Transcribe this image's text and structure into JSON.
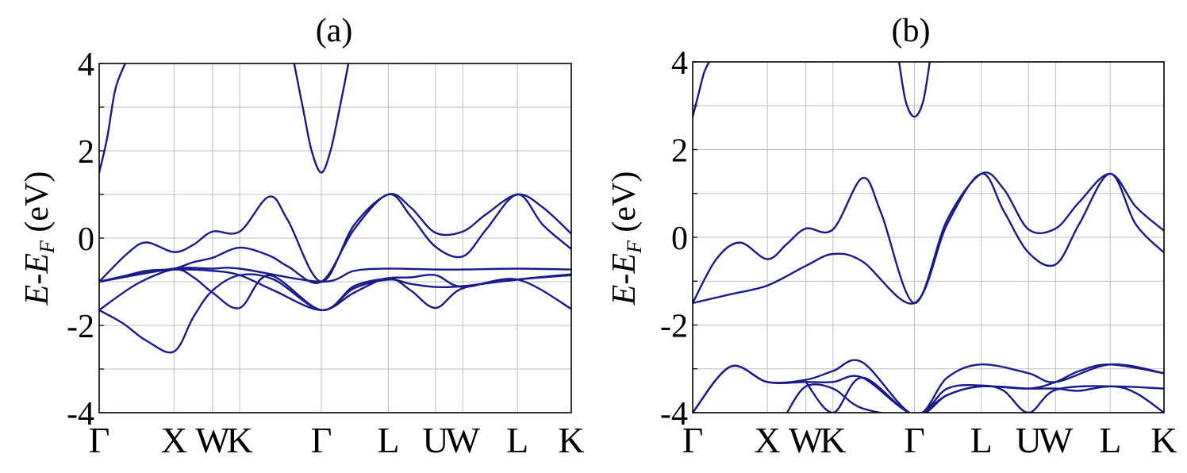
{
  "chart_data": [
    {
      "type": "line",
      "title": "(a)",
      "ylabel_main": "E-E",
      "ylabel_sub": "F",
      "ylabel_unit": " (eV)",
      "ylim": [
        -4,
        4
      ],
      "yticks": [
        -4,
        -2,
        0,
        2,
        4
      ],
      "ytick_labels": [
        "-4",
        "-2",
        "0",
        "2",
        "4"
      ],
      "x_labels": [
        "Γ",
        "X",
        "W",
        "K",
        "Γ",
        "L",
        "U",
        "W",
        "L",
        "K"
      ],
      "x_label_positions": [
        0,
        0.1585,
        0.2402,
        0.2977,
        0.4706,
        0.6124,
        0.7126,
        0.7701,
        0.886,
        1.0
      ],
      "grid": true,
      "color": "#1a1a8c",
      "series": [
        {
          "x": [
            0,
            0.017,
            0.034,
            0.055
          ],
          "y": [
            1.5,
            2.3,
            3.4,
            4.0
          ]
        },
        {
          "x": [
            0.413,
            0.433,
            0.45,
            0.4706,
            0.49,
            0.508,
            0.528
          ],
          "y": [
            4.0,
            2.9,
            2.0,
            1.5,
            2.0,
            2.9,
            4.0
          ]
        },
        {
          "x": [
            0,
            0.06,
            0.1,
            0.1585,
            0.2,
            0.2402,
            0.2977,
            0.36,
            0.4,
            0.4706,
            0.54,
            0.6124,
            0.66,
            0.7126,
            0.7701,
            0.82,
            0.886,
            0.94,
            1.0
          ],
          "y": [
            -1.0,
            -0.35,
            -0.1,
            -0.32,
            -0.15,
            0.15,
            0.15,
            0.95,
            0.4,
            -1.0,
            0.3,
            1.0,
            0.7,
            0.12,
            0.15,
            0.55,
            1.0,
            0.7,
            0.1
          ]
        },
        {
          "x": [
            0,
            0.06,
            0.1,
            0.1585,
            0.2,
            0.2402,
            0.2977,
            0.36,
            0.4,
            0.4706,
            0.54,
            0.6124,
            0.66,
            0.7126,
            0.7701,
            0.82,
            0.886,
            0.94,
            1.0
          ],
          "y": [
            -1.0,
            -0.85,
            -0.75,
            -0.7,
            -0.55,
            -0.45,
            -0.22,
            -0.4,
            -0.65,
            -1.0,
            0.2,
            1.0,
            0.5,
            -0.2,
            -0.42,
            0.2,
            1.0,
            0.3,
            -0.25
          ]
        },
        {
          "x": [
            0,
            0.1585,
            0.2402,
            0.2977,
            0.4706,
            0.54,
            0.6124,
            0.7126,
            0.7701,
            0.886,
            1.0
          ],
          "y": [
            -1.0,
            -0.7,
            -0.7,
            -0.7,
            -1.0,
            -0.75,
            -0.7,
            -0.72,
            -0.72,
            -0.7,
            -0.72
          ]
        },
        {
          "x": [
            0,
            0.08,
            0.1585,
            0.2402,
            0.2977,
            0.37,
            0.4706,
            0.54,
            0.6124,
            0.66,
            0.7126,
            0.7701,
            0.886,
            1.0
          ],
          "y": [
            -1.0,
            -0.82,
            -0.72,
            -0.75,
            -0.85,
            -1.2,
            -1.65,
            -1.25,
            -0.92,
            -1.2,
            -1.6,
            -1.15,
            -0.95,
            -0.83
          ]
        },
        {
          "x": [
            0,
            0.08,
            0.1585,
            0.2,
            0.2402,
            0.2977,
            0.36,
            0.4706,
            0.54,
            0.6124,
            0.66,
            0.7126,
            0.7701,
            0.886,
            1.0
          ],
          "y": [
            -1.65,
            -1.05,
            -0.72,
            -0.9,
            -1.25,
            -1.6,
            -0.85,
            -1.65,
            -1.1,
            -0.92,
            -0.9,
            -0.85,
            -1.12,
            -0.95,
            -1.62
          ]
        },
        {
          "x": [
            0,
            0.05,
            0.1,
            0.1585,
            0.2,
            0.2402,
            0.2977,
            0.37,
            0.4706,
            0.54,
            0.6124,
            0.66,
            0.7126,
            0.7701,
            0.886,
            1.0
          ],
          "y": [
            -1.65,
            -1.95,
            -2.35,
            -2.6,
            -1.8,
            -1.2,
            -0.85,
            -0.95,
            -1.65,
            -1.15,
            -0.95,
            -1.05,
            -1.12,
            -1.1,
            -0.95,
            -0.85
          ]
        }
      ]
    },
    {
      "type": "line",
      "title": "(b)",
      "ylabel_main": "E-E",
      "ylabel_sub": "F",
      "ylabel_unit": " (eV)",
      "ylim": [
        -4,
        4
      ],
      "yticks": [
        -4,
        -2,
        0,
        2,
        4
      ],
      "ytick_labels": [
        "-4",
        "-2",
        "0",
        "2",
        "4"
      ],
      "x_labels": [
        "Γ",
        "X",
        "W",
        "K",
        "Γ",
        "L",
        "U",
        "W",
        "L",
        "K"
      ],
      "x_label_positions": [
        0,
        0.1585,
        0.2402,
        0.2977,
        0.4706,
        0.6124,
        0.7126,
        0.7701,
        0.886,
        1.0
      ],
      "grid": true,
      "color": "#1a1a8c",
      "series": [
        {
          "x": [
            0,
            0.012,
            0.024,
            0.035
          ],
          "y": [
            2.75,
            3.25,
            3.75,
            4.0
          ]
        },
        {
          "x": [
            0.438,
            0.452,
            0.4706,
            0.489,
            0.503
          ],
          "y": [
            4.0,
            3.1,
            2.75,
            3.1,
            4.0
          ]
        },
        {
          "x": [
            0,
            0.05,
            0.1,
            0.1585,
            0.2,
            0.2402,
            0.2977,
            0.36,
            0.4,
            0.4706,
            0.54,
            0.6124,
            0.66,
            0.7126,
            0.7701,
            0.82,
            0.886,
            0.94,
            1.0
          ],
          "y": [
            -1.5,
            -0.5,
            -0.12,
            -0.5,
            -0.15,
            0.2,
            0.18,
            1.35,
            0.55,
            -1.5,
            0.4,
            1.45,
            1.1,
            0.18,
            0.2,
            0.8,
            1.45,
            0.7,
            0.15
          ]
        },
        {
          "x": [
            0,
            0.08,
            0.1585,
            0.2402,
            0.2977,
            0.36,
            0.4706,
            0.54,
            0.6124,
            0.66,
            0.7126,
            0.7701,
            0.82,
            0.886,
            0.94,
            1.0
          ],
          "y": [
            -1.5,
            -1.3,
            -1.1,
            -0.65,
            -0.38,
            -0.55,
            -1.5,
            0.3,
            1.45,
            0.6,
            -0.35,
            -0.62,
            0.3,
            1.45,
            0.3,
            -0.35
          ]
        },
        {
          "x": [
            0,
            0.08,
            0.1585,
            0.2402,
            0.2977,
            0.36,
            0.4706,
            0.54,
            0.6124,
            0.7126,
            0.7701,
            0.886,
            1.0
          ],
          "y": [
            -4.0,
            -2.95,
            -3.3,
            -3.25,
            -3.05,
            -2.85,
            -4.05,
            -3.2,
            -2.9,
            -3.1,
            -3.3,
            -2.9,
            -3.1
          ]
        },
        {
          "x": [
            0,
            0.08,
            0.1585,
            0.2402,
            0.2977,
            0.36,
            0.4706,
            0.54,
            0.6124,
            0.7126,
            0.7701,
            0.82,
            0.886,
            1.0
          ],
          "y": [
            -4.0,
            -2.95,
            -3.3,
            -3.3,
            -3.3,
            -3.2,
            -4.05,
            -3.6,
            -3.4,
            -3.45,
            -3.3,
            -3.05,
            -2.9,
            -3.1
          ]
        },
        {
          "x": [
            0.2,
            0.2402,
            0.2977,
            0.36,
            0.4706,
            0.54,
            0.6124,
            0.7126,
            0.7701,
            0.82,
            0.886,
            1.0
          ],
          "y": [
            -4.0,
            -3.4,
            -3.45,
            -3.9,
            -4.05,
            -3.6,
            -3.4,
            -3.45,
            -3.45,
            -3.5,
            -3.4,
            -3.45
          ]
        },
        {
          "x": [
            0.2402,
            0.2977,
            0.36,
            0.4706,
            0.54,
            0.6124,
            0.66,
            0.7126,
            0.7701,
            0.886,
            0.94,
            1.0
          ],
          "y": [
            -3.3,
            -4.0,
            -3.2,
            -4.05,
            -3.45,
            -3.38,
            -3.5,
            -4.0,
            -3.48,
            -3.4,
            -3.55,
            -4.0
          ]
        }
      ]
    }
  ]
}
